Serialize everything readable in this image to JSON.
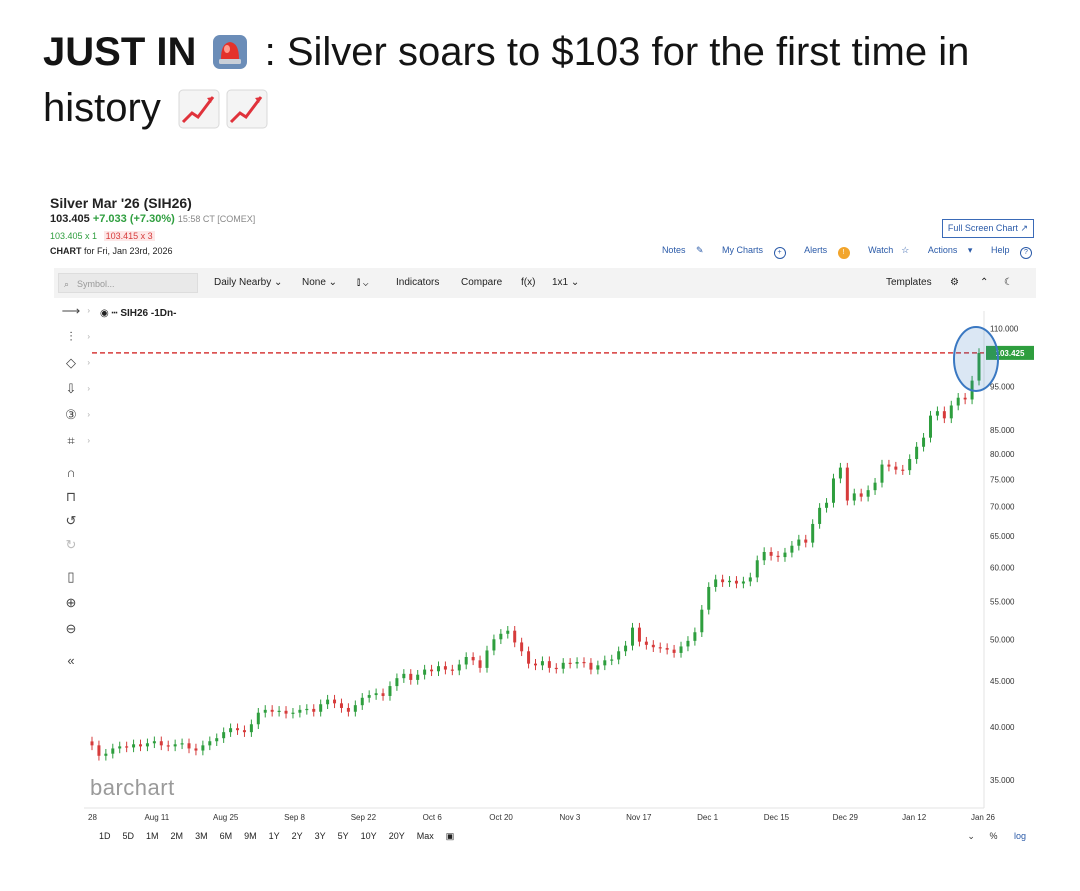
{
  "headline": {
    "lead": "JUST IN",
    "separator": ": ",
    "text": "Silver soars to $103 for the first time in history",
    "emoji_siren": "siren-emoji",
    "emoji_chart": "chart-increasing-emoji"
  },
  "chart_header": {
    "title": "Silver Mar '26 (SIH26)",
    "last": "103.405",
    "change": "+7.033 (+7.30%)",
    "time": "15:58 CT [COMEX]",
    "bid": "103.405 x 1",
    "ask": "103.415 x 3",
    "chart_label": "CHART",
    "chart_for": "for Fri, Jan 23rd, 2026",
    "fullscreen": "Full Screen Chart",
    "links": [
      "Notes",
      "My Charts",
      "Alerts",
      "Watch",
      "Actions",
      "Help"
    ]
  },
  "toolbar": {
    "symbol_placeholder": "Symbol...",
    "items": [
      "Daily Nearby",
      "None",
      "Indicators",
      "Compare",
      "f(x)",
      "1x1"
    ],
    "templates": "Templates"
  },
  "series_legend": "SIH26 -1Dn-",
  "logo": "barchart",
  "ranges": [
    "1D",
    "5D",
    "1M",
    "2M",
    "3M",
    "6M",
    "9M",
    "1Y",
    "2Y",
    "3Y",
    "5Y",
    "10Y",
    "20Y",
    "Max"
  ],
  "scale_options": [
    "%",
    "log"
  ],
  "colors": {
    "up": "#2e9e3e",
    "down": "#d63b3b",
    "ref_line": "#d63b3b",
    "last_tag": "#2e9e3e",
    "highlight": "#3a78c2"
  },
  "chart_data": {
    "type": "candlestick",
    "title": "Silver Mar '26 (SIH26)",
    "y_ticks": [
      "110.000",
      "103.425",
      "95.000",
      "85.000",
      "80.000",
      "75.000",
      "70.000",
      "65.000",
      "60.000",
      "55.000",
      "50.000",
      "45.000",
      "40.000",
      "35.000"
    ],
    "y_tick_values": [
      110,
      95,
      85,
      80,
      75,
      70,
      65,
      60,
      55,
      50,
      45,
      40,
      35
    ],
    "ylim": [
      33,
      113
    ],
    "y_scale": "log",
    "x_ticks": [
      "28",
      "Aug 11",
      "Aug 25",
      "Sep 8",
      "Sep 22",
      "Oct 6",
      "Oct 20",
      "Nov 3",
      "Nov 17",
      "Dec 1",
      "Dec 15",
      "Dec 29",
      "Jan 12",
      "Jan 26"
    ],
    "reference_line": 103.425,
    "last_value_label": "103.425",
    "closes": [
      38.2,
      37.2,
      37.4,
      37.9,
      38.1,
      38.0,
      38.3,
      38.1,
      38.4,
      38.6,
      38.2,
      38.1,
      38.3,
      38.4,
      37.9,
      37.7,
      38.2,
      38.6,
      38.9,
      39.5,
      39.9,
      39.7,
      39.5,
      40.3,
      41.5,
      41.8,
      41.6,
      41.7,
      41.4,
      41.5,
      41.8,
      41.9,
      41.6,
      42.4,
      42.9,
      42.5,
      42.0,
      41.6,
      42.3,
      43.1,
      43.4,
      43.6,
      43.3,
      44.4,
      45.3,
      45.8,
      45.1,
      45.7,
      46.3,
      46.1,
      46.7,
      46.3,
      46.2,
      46.9,
      47.8,
      47.4,
      46.5,
      48.6,
      50.0,
      50.7,
      51.1,
      49.6,
      48.5,
      47.0,
      46.8,
      47.3,
      46.5,
      46.4,
      47.1,
      47.0,
      47.2,
      47.1,
      46.3,
      46.8,
      47.4,
      47.5,
      48.5,
      49.2,
      51.5,
      49.7,
      49.3,
      49.0,
      48.9,
      48.7,
      48.3,
      49.1,
      49.8,
      50.9,
      53.9,
      57.1,
      58.2,
      57.8,
      58.0,
      57.6,
      57.9,
      58.5,
      61.1,
      62.4,
      61.8,
      61.6,
      62.3,
      63.4,
      64.4,
      63.9,
      67.0,
      69.8,
      70.7,
      75.2,
      77.3,
      71.1,
      72.4,
      71.8,
      73.0,
      74.4,
      77.9,
      77.5,
      76.9,
      76.8,
      79.0,
      81.5,
      83.4,
      88.2,
      89.2,
      87.6,
      90.5,
      92.3,
      91.9,
      96.4,
      103.4
    ]
  }
}
